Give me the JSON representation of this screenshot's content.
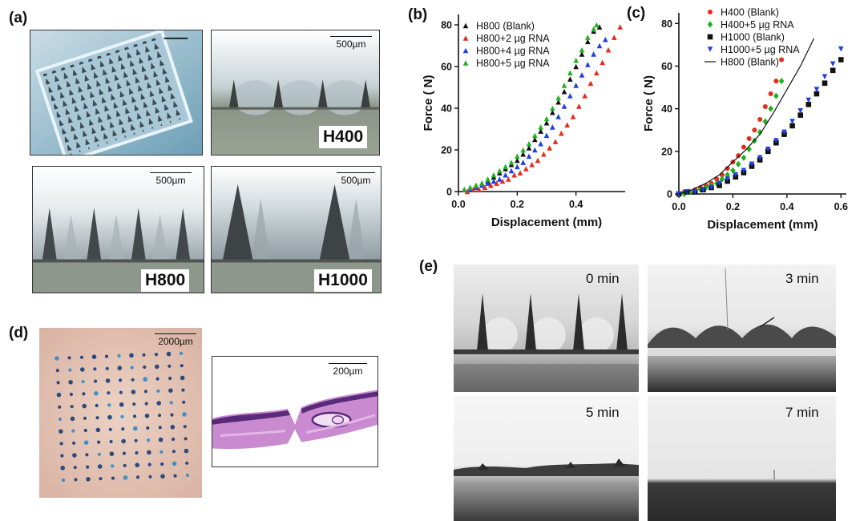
{
  "panel_labels": [
    "(a)",
    "(b)",
    "(c)",
    "(d)",
    "(e)"
  ],
  "panel_a": {
    "tags": [
      "H400",
      "H800",
      "H1000"
    ],
    "scale_bars": [
      "500µm",
      "500µm",
      "500µm"
    ]
  },
  "panel_d": {
    "scale_bars": [
      "2000µm",
      "200µm"
    ]
  },
  "panel_e": {
    "times": [
      "0 min",
      "3 min",
      "5 min",
      "7 min"
    ]
  },
  "chart_data": [
    {
      "type": "scatter",
      "panel": "(b)",
      "xlabel": "Displacement (mm)",
      "ylabel": "Force ( N)",
      "xlim": [
        0,
        0.6
      ],
      "ylim": [
        0,
        85
      ],
      "xticks": [
        "0.0",
        "0.2",
        "0.4",
        "0.6"
      ],
      "yticks": [
        "0",
        "20",
        "40",
        "60",
        "80"
      ],
      "legend_position": "top-left",
      "series": [
        {
          "name": "H800 (Blank)",
          "color": "#111111",
          "marker": "triangle-up",
          "x": [
            0.02,
            0.04,
            0.06,
            0.08,
            0.1,
            0.12,
            0.14,
            0.16,
            0.18,
            0.2,
            0.22,
            0.24,
            0.26,
            0.28,
            0.3,
            0.32,
            0.34,
            0.36,
            0.38,
            0.4,
            0.42,
            0.44,
            0.46,
            0.48
          ],
          "y": [
            1,
            2,
            3,
            4,
            5,
            7,
            9,
            11,
            13,
            15,
            18,
            21,
            25,
            29,
            33,
            38,
            43,
            48,
            54,
            60,
            66,
            72,
            77,
            79
          ]
        },
        {
          "name": "H800+2 µg RNA",
          "color": "#e8291c",
          "marker": "triangle-up",
          "x": [
            0.03,
            0.05,
            0.07,
            0.09,
            0.11,
            0.13,
            0.15,
            0.17,
            0.19,
            0.21,
            0.23,
            0.25,
            0.27,
            0.29,
            0.31,
            0.33,
            0.35,
            0.37,
            0.39,
            0.41,
            0.43,
            0.45,
            0.47,
            0.49,
            0.51,
            0.53,
            0.55
          ],
          "y": [
            0,
            1,
            1,
            2,
            3,
            4,
            5,
            6,
            8,
            9,
            11,
            13,
            15,
            18,
            21,
            24,
            28,
            32,
            36,
            41,
            46,
            52,
            57,
            62,
            68,
            74,
            79
          ]
        },
        {
          "name": "H800+4 µg RNA",
          "color": "#1f3fe6",
          "marker": "triangle-up",
          "x": [
            0.02,
            0.04,
            0.06,
            0.08,
            0.1,
            0.12,
            0.14,
            0.16,
            0.18,
            0.2,
            0.22,
            0.24,
            0.26,
            0.28,
            0.3,
            0.32,
            0.34,
            0.36,
            0.38,
            0.4,
            0.42,
            0.44,
            0.46,
            0.48,
            0.5
          ],
          "y": [
            1,
            1,
            2,
            3,
            4,
            5,
            6,
            8,
            10,
            12,
            14,
            17,
            20,
            23,
            27,
            31,
            36,
            41,
            46,
            51,
            56,
            61,
            66,
            70,
            73
          ]
        },
        {
          "name": "H800+5 µg RNA",
          "color": "#1eb31e",
          "marker": "triangle-up",
          "x": [
            0.02,
            0.04,
            0.06,
            0.08,
            0.1,
            0.12,
            0.14,
            0.16,
            0.18,
            0.2,
            0.22,
            0.24,
            0.26,
            0.28,
            0.3,
            0.32,
            0.34,
            0.36,
            0.38,
            0.4,
            0.42,
            0.44,
            0.46,
            0.47
          ],
          "y": [
            1,
            2,
            3,
            4,
            6,
            8,
            10,
            12,
            14,
            17,
            20,
            23,
            27,
            31,
            35,
            40,
            45,
            51,
            57,
            63,
            68,
            74,
            78,
            80
          ]
        }
      ]
    },
    {
      "type": "scatter",
      "panel": "(c)",
      "xlabel": "Displacement (mm)",
      "ylabel": "Force ( N)",
      "xlim": [
        0,
        0.62
      ],
      "ylim": [
        0,
        85
      ],
      "xticks": [
        "0.0",
        "0.2",
        "0.4",
        "0.6"
      ],
      "yticks": [
        "0",
        "20",
        "40",
        "60",
        "80"
      ],
      "legend_position": "top-left",
      "series": [
        {
          "name": "H400 (Blank)",
          "color": "#e8291c",
          "marker": "circle",
          "x": [
            0.0,
            0.02,
            0.04,
            0.06,
            0.08,
            0.1,
            0.12,
            0.14,
            0.16,
            0.18,
            0.2,
            0.22,
            0.24,
            0.26,
            0.28,
            0.3,
            0.32,
            0.34,
            0.36,
            0.38
          ],
          "y": [
            0,
            1,
            1,
            2,
            3,
            4,
            5,
            7,
            9,
            12,
            15,
            18,
            22,
            26,
            30,
            35,
            41,
            47,
            53,
            63
          ]
        },
        {
          "name": "H400+5 µg RNA",
          "color": "#1eb31e",
          "marker": "diamond",
          "x": [
            0.0,
            0.02,
            0.04,
            0.06,
            0.08,
            0.1,
            0.12,
            0.14,
            0.16,
            0.18,
            0.2,
            0.22,
            0.24,
            0.26,
            0.28,
            0.3,
            0.32,
            0.34,
            0.36,
            0.38
          ],
          "y": [
            0,
            0,
            1,
            1,
            2,
            3,
            4,
            5,
            7,
            9,
            11,
            14,
            17,
            21,
            25,
            29,
            34,
            40,
            46,
            53
          ]
        },
        {
          "name": "H1000 (Blank)",
          "color": "#111111",
          "marker": "square",
          "x": [
            0.0,
            0.03,
            0.06,
            0.09,
            0.12,
            0.15,
            0.18,
            0.21,
            0.24,
            0.27,
            0.3,
            0.33,
            0.36,
            0.39,
            0.42,
            0.45,
            0.48,
            0.51,
            0.54,
            0.57,
            0.6
          ],
          "y": [
            0,
            1,
            1,
            2,
            3,
            4,
            6,
            8,
            10,
            13,
            16,
            20,
            24,
            28,
            32,
            37,
            42,
            47,
            52,
            58,
            63
          ]
        },
        {
          "name": "H1000+5 µg RNA",
          "color": "#1f3fe6",
          "marker": "triangle-down",
          "x": [
            0.0,
            0.03,
            0.06,
            0.09,
            0.12,
            0.15,
            0.18,
            0.21,
            0.24,
            0.27,
            0.3,
            0.33,
            0.36,
            0.39,
            0.42,
            0.45,
            0.48,
            0.51,
            0.54,
            0.57,
            0.6
          ],
          "y": [
            0,
            1,
            1,
            2,
            3,
            5,
            7,
            9,
            11,
            14,
            17,
            21,
            25,
            29,
            34,
            39,
            44,
            49,
            55,
            61,
            68
          ]
        },
        {
          "name": "H800  (Blank)",
          "color": "#111111",
          "marker": "line",
          "x": [
            0.0,
            0.05,
            0.1,
            0.15,
            0.2,
            0.25,
            0.3,
            0.35,
            0.4,
            0.45,
            0.5
          ],
          "y": [
            0,
            2,
            5,
            9,
            15,
            21,
            28,
            38,
            49,
            60,
            73
          ]
        }
      ]
    }
  ]
}
